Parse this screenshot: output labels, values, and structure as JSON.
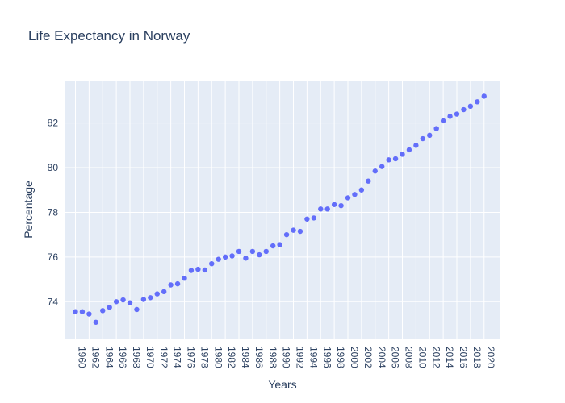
{
  "chart_data": {
    "type": "scatter",
    "title": "Life Expectancy in Norway",
    "xlabel": "Years",
    "ylabel": "Percentage",
    "x": [
      1960,
      1961,
      1962,
      1963,
      1964,
      1965,
      1966,
      1967,
      1968,
      1969,
      1970,
      1971,
      1972,
      1973,
      1974,
      1975,
      1976,
      1977,
      1978,
      1979,
      1980,
      1981,
      1982,
      1983,
      1984,
      1985,
      1986,
      1987,
      1988,
      1989,
      1990,
      1991,
      1992,
      1993,
      1994,
      1995,
      1996,
      1997,
      1998,
      1999,
      2000,
      2001,
      2002,
      2003,
      2004,
      2005,
      2006,
      2007,
      2008,
      2009,
      2010,
      2011,
      2012,
      2013,
      2014,
      2015,
      2016,
      2017,
      2018,
      2019,
      2020
    ],
    "y": [
      73.55,
      73.55,
      73.45,
      73.08,
      73.6,
      73.75,
      74.0,
      74.08,
      73.95,
      73.65,
      74.1,
      74.18,
      74.35,
      74.45,
      74.75,
      74.8,
      75.05,
      75.4,
      75.45,
      75.42,
      75.7,
      75.9,
      76.0,
      76.05,
      76.25,
      75.95,
      76.25,
      76.1,
      76.25,
      76.5,
      76.55,
      77.0,
      77.2,
      77.15,
      77.7,
      77.75,
      78.15,
      78.15,
      78.35,
      78.3,
      78.65,
      78.8,
      79.0,
      79.4,
      79.85,
      80.05,
      80.35,
      80.4,
      80.6,
      80.8,
      81.0,
      81.3,
      81.45,
      81.75,
      82.1,
      82.3,
      82.4,
      82.6,
      82.75,
      82.95,
      83.2
    ],
    "xlim": [
      1958.4,
      2022.4
    ],
    "ylim": [
      72.35,
      83.9
    ],
    "x_ticks": [
      "1960",
      "1962",
      "1964",
      "1966",
      "1968",
      "1970",
      "1972",
      "1974",
      "1976",
      "1978",
      "1980",
      "1982",
      "1984",
      "1986",
      "1988",
      "1990",
      "1992",
      "1994",
      "1996",
      "1998",
      "2000",
      "2002",
      "2004",
      "2006",
      "2008",
      "2010",
      "2012",
      "2014",
      "2016",
      "2018",
      "2020"
    ],
    "y_ticks": [
      "74",
      "76",
      "78",
      "80",
      "82"
    ],
    "grid": true,
    "colors": {
      "marker": "#636efa",
      "plot_bg": "#e5ecf6",
      "grid": "#ffffff",
      "text": "#2a3f5f"
    }
  }
}
